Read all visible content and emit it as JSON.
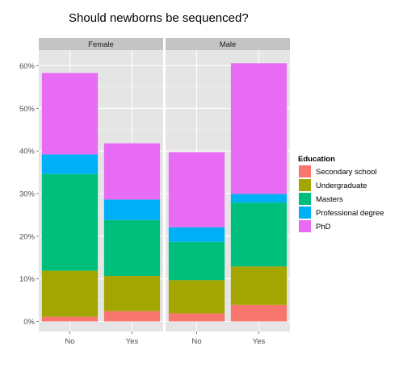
{
  "chart_data": {
    "type": "bar",
    "stacked": true,
    "title": "Should newborns be sequenced?",
    "xlabel": "",
    "ylabel": "",
    "ylim": [
      0,
      0.65
    ],
    "yticks": [
      0,
      0.1,
      0.2,
      0.3,
      0.4,
      0.5,
      0.6
    ],
    "ytick_labels": [
      "0%",
      "10%",
      "20%",
      "30%",
      "40%",
      "50%",
      "60%"
    ],
    "grid": true,
    "legend_position": "right",
    "legend_title": "Education",
    "categories": [
      "No",
      "Yes"
    ],
    "facets": [
      {
        "label": "Female",
        "series": [
          {
            "name": "Secondary school",
            "values": [
              0.011,
              0.024
            ]
          },
          {
            "name": "Undergraduate",
            "values": [
              0.108,
              0.083
            ]
          },
          {
            "name": "Masters",
            "values": [
              0.227,
              0.131
            ]
          },
          {
            "name": "Professional degree",
            "values": [
              0.046,
              0.048
            ]
          },
          {
            "name": "PhD",
            "values": [
              0.191,
              0.132
            ]
          }
        ]
      },
      {
        "label": "Male",
        "series": [
          {
            "name": "Secondary school",
            "values": [
              0.019,
              0.039
            ]
          },
          {
            "name": "Undergraduate",
            "values": [
              0.078,
              0.09
            ]
          },
          {
            "name": "Masters",
            "values": [
              0.09,
              0.15
            ]
          },
          {
            "name": "Professional degree",
            "values": [
              0.034,
              0.02
            ]
          },
          {
            "name": "PhD",
            "values": [
              0.176,
              0.307
            ]
          }
        ]
      }
    ],
    "colors": {
      "Secondary school": "#F8766D",
      "Undergraduate": "#A3A500",
      "Masters": "#00BF7D",
      "Professional degree": "#00B0F6",
      "PhD": "#E76BF3"
    }
  }
}
